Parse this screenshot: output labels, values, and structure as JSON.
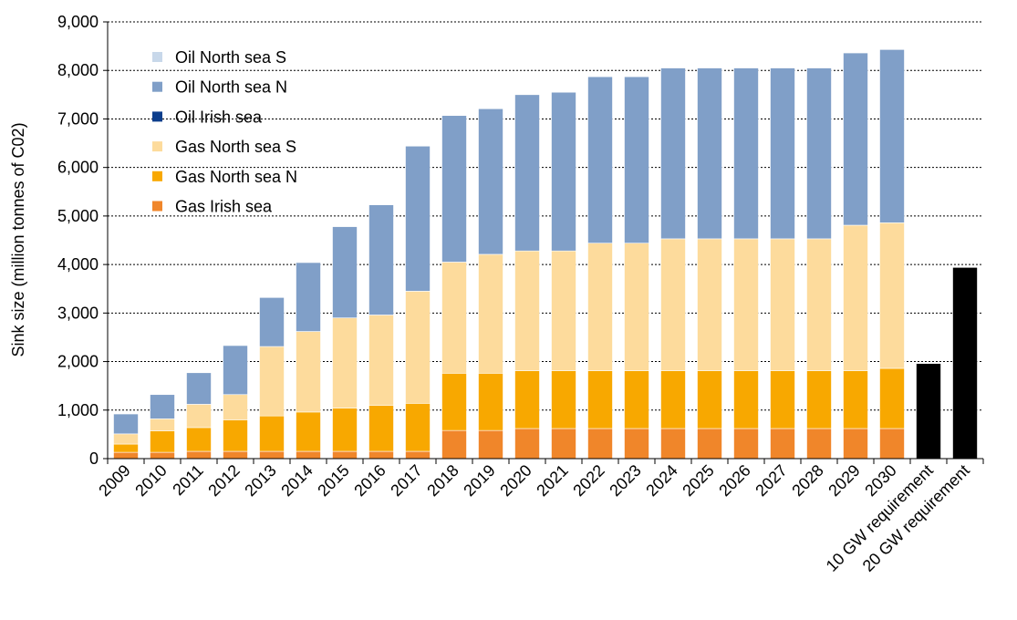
{
  "chart_data": {
    "type": "stacked_bar",
    "y_label": "Sink size (million tonnes of C02)",
    "categories": [
      "2009",
      "2010",
      "2011",
      "2012",
      "2013",
      "2014",
      "2015",
      "2016",
      "2017",
      "2018",
      "2019",
      "2020",
      "2021",
      "2022",
      "2023",
      "2024",
      "2025",
      "2026",
      "2027",
      "2028",
      "2029",
      "2030",
      "10 GW requirement",
      "20 GW requirement"
    ],
    "series": [
      {
        "name": "Gas Irish sea",
        "color": "#f0862a",
        "values": [
          130,
          130,
          150,
          150,
          150,
          150,
          150,
          150,
          150,
          580,
          580,
          620,
          620,
          620,
          620,
          620,
          620,
          620,
          620,
          620,
          620,
          620,
          null,
          null
        ]
      },
      {
        "name": "Gas North sea N",
        "color": "#f8a800",
        "values": [
          170,
          440,
          490,
          650,
          730,
          810,
          890,
          950,
          990,
          1180,
          1180,
          1190,
          1190,
          1190,
          1190,
          1190,
          1190,
          1190,
          1190,
          1190,
          1190,
          1240,
          null,
          null
        ]
      },
      {
        "name": "Gas North sea S",
        "color": "#fddb9c",
        "values": [
          210,
          250,
          480,
          520,
          1430,
          1660,
          1860,
          1860,
          2310,
          2290,
          2450,
          2470,
          2470,
          2630,
          2630,
          2720,
          2720,
          2720,
          2720,
          2720,
          3000,
          3000,
          null,
          null
        ]
      },
      {
        "name": "Oil Irish sea",
        "color": "#0c3e8c",
        "values": [
          0,
          0,
          0,
          0,
          0,
          0,
          0,
          0,
          0,
          0,
          0,
          0,
          0,
          0,
          0,
          0,
          0,
          0,
          0,
          0,
          0,
          0,
          null,
          null
        ]
      },
      {
        "name": "Oil North sea N",
        "color": "#809fc8",
        "values": [
          410,
          500,
          650,
          1010,
          1010,
          1420,
          1880,
          2270,
          2990,
          3020,
          3000,
          3220,
          3270,
          3430,
          3430,
          3520,
          3520,
          3520,
          3520,
          3520,
          3550,
          3570,
          null,
          null
        ]
      },
      {
        "name": "Oil North sea S",
        "color": "#c8d8ea",
        "values": [
          0,
          0,
          0,
          0,
          0,
          0,
          0,
          0,
          0,
          0,
          0,
          0,
          0,
          0,
          0,
          0,
          0,
          0,
          0,
          0,
          0,
          0,
          null,
          null
        ]
      },
      {
        "color": "#000000",
        "values": [
          null,
          null,
          null,
          null,
          null,
          null,
          null,
          null,
          null,
          null,
          null,
          null,
          null,
          null,
          null,
          null,
          null,
          null,
          null,
          null,
          null,
          null,
          1960,
          3940
        ]
      }
    ],
    "ylim": [
      0,
      9000
    ],
    "yticks": [
      0,
      {
        "value": 1000,
        "label": "1,000"
      },
      {
        "value": 2000,
        "label": "2,000"
      },
      {
        "value": 3000,
        "label": "3,000"
      },
      {
        "value": 4000,
        "label": "4,000"
      },
      {
        "value": 5000,
        "label": "5,000"
      },
      {
        "value": 6000,
        "label": "6,000"
      },
      {
        "value": 7000,
        "label": "7,000"
      },
      {
        "value": 8000,
        "label": "8,000"
      },
      {
        "value": 9000,
        "label": "9,000"
      }
    ],
    "grid": true,
    "legend": "upper left"
  }
}
